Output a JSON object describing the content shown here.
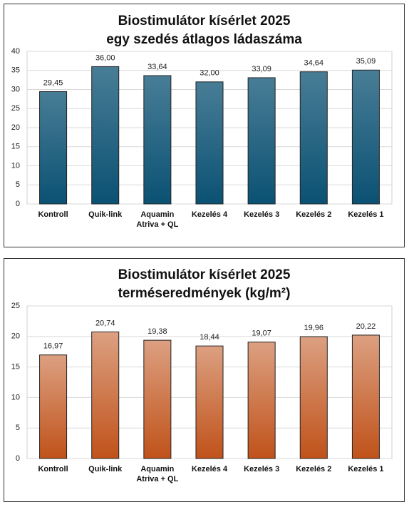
{
  "chart_data": [
    {
      "type": "bar",
      "title": "Biostimulátor kísérlet  2025\negy szedés átlagos ládaszáma",
      "categories": [
        "Kontroll",
        "Quik-link",
        "Aquamin\nAtriva + QL",
        "Kezelés 4",
        "Kezelés 3",
        "Kezelés 2",
        "Kezelés 1"
      ],
      "values": [
        29.45,
        36.0,
        33.64,
        32.0,
        33.09,
        34.64,
        35.09
      ],
      "value_labels": [
        "29,45",
        "36,00",
        "33,64",
        "32,00",
        "33,09",
        "34,64",
        "35,09"
      ],
      "color": "#0b5173",
      "ylim": [
        0,
        40
      ],
      "yticks": [
        0,
        5,
        10,
        15,
        20,
        25,
        30,
        35,
        40
      ],
      "grid": true
    },
    {
      "type": "bar",
      "title": "Biostimulátor kísérlet 2025\nterméseredmények (kg/m²)",
      "categories": [
        "Kontroll",
        "Quik-link",
        "Aquamin\nAtriva + QL",
        "Kezelés 4",
        "Kezelés 3",
        "Kezelés 2",
        "Kezelés 1"
      ],
      "values": [
        16.97,
        20.74,
        19.38,
        18.44,
        19.07,
        19.96,
        20.22
      ],
      "value_labels": [
        "16,97",
        "20,74",
        "19,38",
        "18,44",
        "19,07",
        "19,96",
        "20,22"
      ],
      "color": "#c0521a",
      "ylim": [
        0,
        25
      ],
      "yticks": [
        0,
        5,
        10,
        15,
        20,
        25
      ],
      "grid": true
    }
  ]
}
